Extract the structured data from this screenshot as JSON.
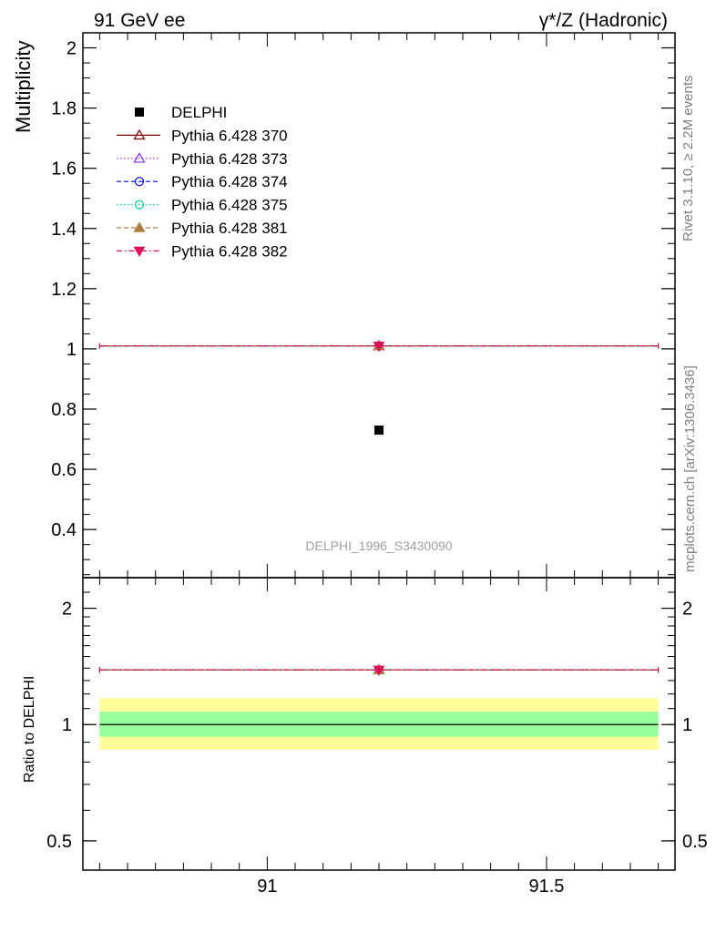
{
  "header": {
    "left": "91 GeV ee",
    "right": "γ*/Z (Hadronic)"
  },
  "side_labels": {
    "rivet": "Rivet 3.1.10, ≥ 2.2M events",
    "mcplots": "mcplots.cern.ch [arXiv:1306.3436]"
  },
  "watermark": "DELPHI_1996_S3430090",
  "colors": {
    "data": "#000000",
    "band_inner": "#99ff99",
    "band_outer": "#ffff99"
  },
  "chart_data": [
    {
      "type": "scatter",
      "panel": "main",
      "ylabel": "Multiplicity",
      "xlim": [
        90.67,
        91.73
      ],
      "ylim": [
        0.24,
        2.05
      ],
      "yticks": [
        "0.4",
        "0.6",
        "0.8",
        "1",
        "1.2",
        "1.4",
        "1.6",
        "1.8",
        "2"
      ],
      "series": [
        {
          "name": "DELPHI",
          "color": "#000000",
          "marker": "square-filled",
          "line": "none",
          "x": [
            91.2
          ],
          "y": [
            0.73
          ]
        },
        {
          "name": "Pythia 6.428 370",
          "color": "#800000",
          "marker": "triangle-up-open",
          "line": "solid",
          "x": [
            91.2
          ],
          "y": [
            1.01
          ],
          "xerr": [
            90.7,
            91.7
          ]
        },
        {
          "name": "Pythia 6.428 373",
          "color": "#8a2be2",
          "marker": "triangle-up-open",
          "line": "dotted",
          "x": [
            91.2
          ],
          "y": [
            1.01
          ],
          "xerr": [
            90.7,
            91.7
          ]
        },
        {
          "name": "Pythia 6.428 374",
          "color": "#0000dd",
          "marker": "circle-open",
          "line": "dashed",
          "x": [
            91.2
          ],
          "y": [
            1.01
          ],
          "xerr": [
            90.7,
            91.7
          ]
        },
        {
          "name": "Pythia 6.428 375",
          "color": "#00ccaa",
          "marker": "circle-open",
          "line": "dotted",
          "x": [
            91.2
          ],
          "y": [
            1.01
          ],
          "xerr": [
            90.7,
            91.7
          ]
        },
        {
          "name": "Pythia 6.428 381",
          "color": "#b07d40",
          "marker": "triangle-up-filled",
          "line": "dashed",
          "x": [
            91.2
          ],
          "y": [
            1.01
          ],
          "xerr": [
            90.7,
            91.7
          ]
        },
        {
          "name": "Pythia 6.428 382",
          "color": "#dd1155",
          "marker": "triangle-down-filled",
          "line": "dashdot",
          "x": [
            91.2
          ],
          "y": [
            1.01
          ],
          "xerr": [
            90.7,
            91.7
          ]
        }
      ]
    },
    {
      "type": "scatter",
      "panel": "ratio",
      "ylabel": "Ratio to DELPHI",
      "yscale": "log",
      "xlim": [
        90.67,
        91.73
      ],
      "ylim": [
        0.42,
        2.4
      ],
      "xticks": [
        "91",
        "91.5"
      ],
      "yticks": [
        "0.5",
        "1",
        "2"
      ],
      "band_inner": [
        0.93,
        1.08
      ],
      "band_outer": [
        0.86,
        1.17
      ],
      "series": [
        {
          "name": "Pythia 6.428 370",
          "color": "#800000",
          "x": [
            91.2
          ],
          "y": [
            1.385
          ]
        },
        {
          "name": "Pythia 6.428 373",
          "color": "#8a2be2",
          "x": [
            91.2
          ],
          "y": [
            1.385
          ]
        },
        {
          "name": "Pythia 6.428 374",
          "color": "#0000dd",
          "x": [
            91.2
          ],
          "y": [
            1.385
          ]
        },
        {
          "name": "Pythia 6.428 375",
          "color": "#00ccaa",
          "x": [
            91.2
          ],
          "y": [
            1.385
          ]
        },
        {
          "name": "Pythia 6.428 381",
          "color": "#b07d40",
          "x": [
            91.2
          ],
          "y": [
            1.385
          ]
        },
        {
          "name": "Pythia 6.428 382",
          "color": "#dd1155",
          "x": [
            91.2
          ],
          "y": [
            1.385
          ]
        }
      ]
    }
  ]
}
